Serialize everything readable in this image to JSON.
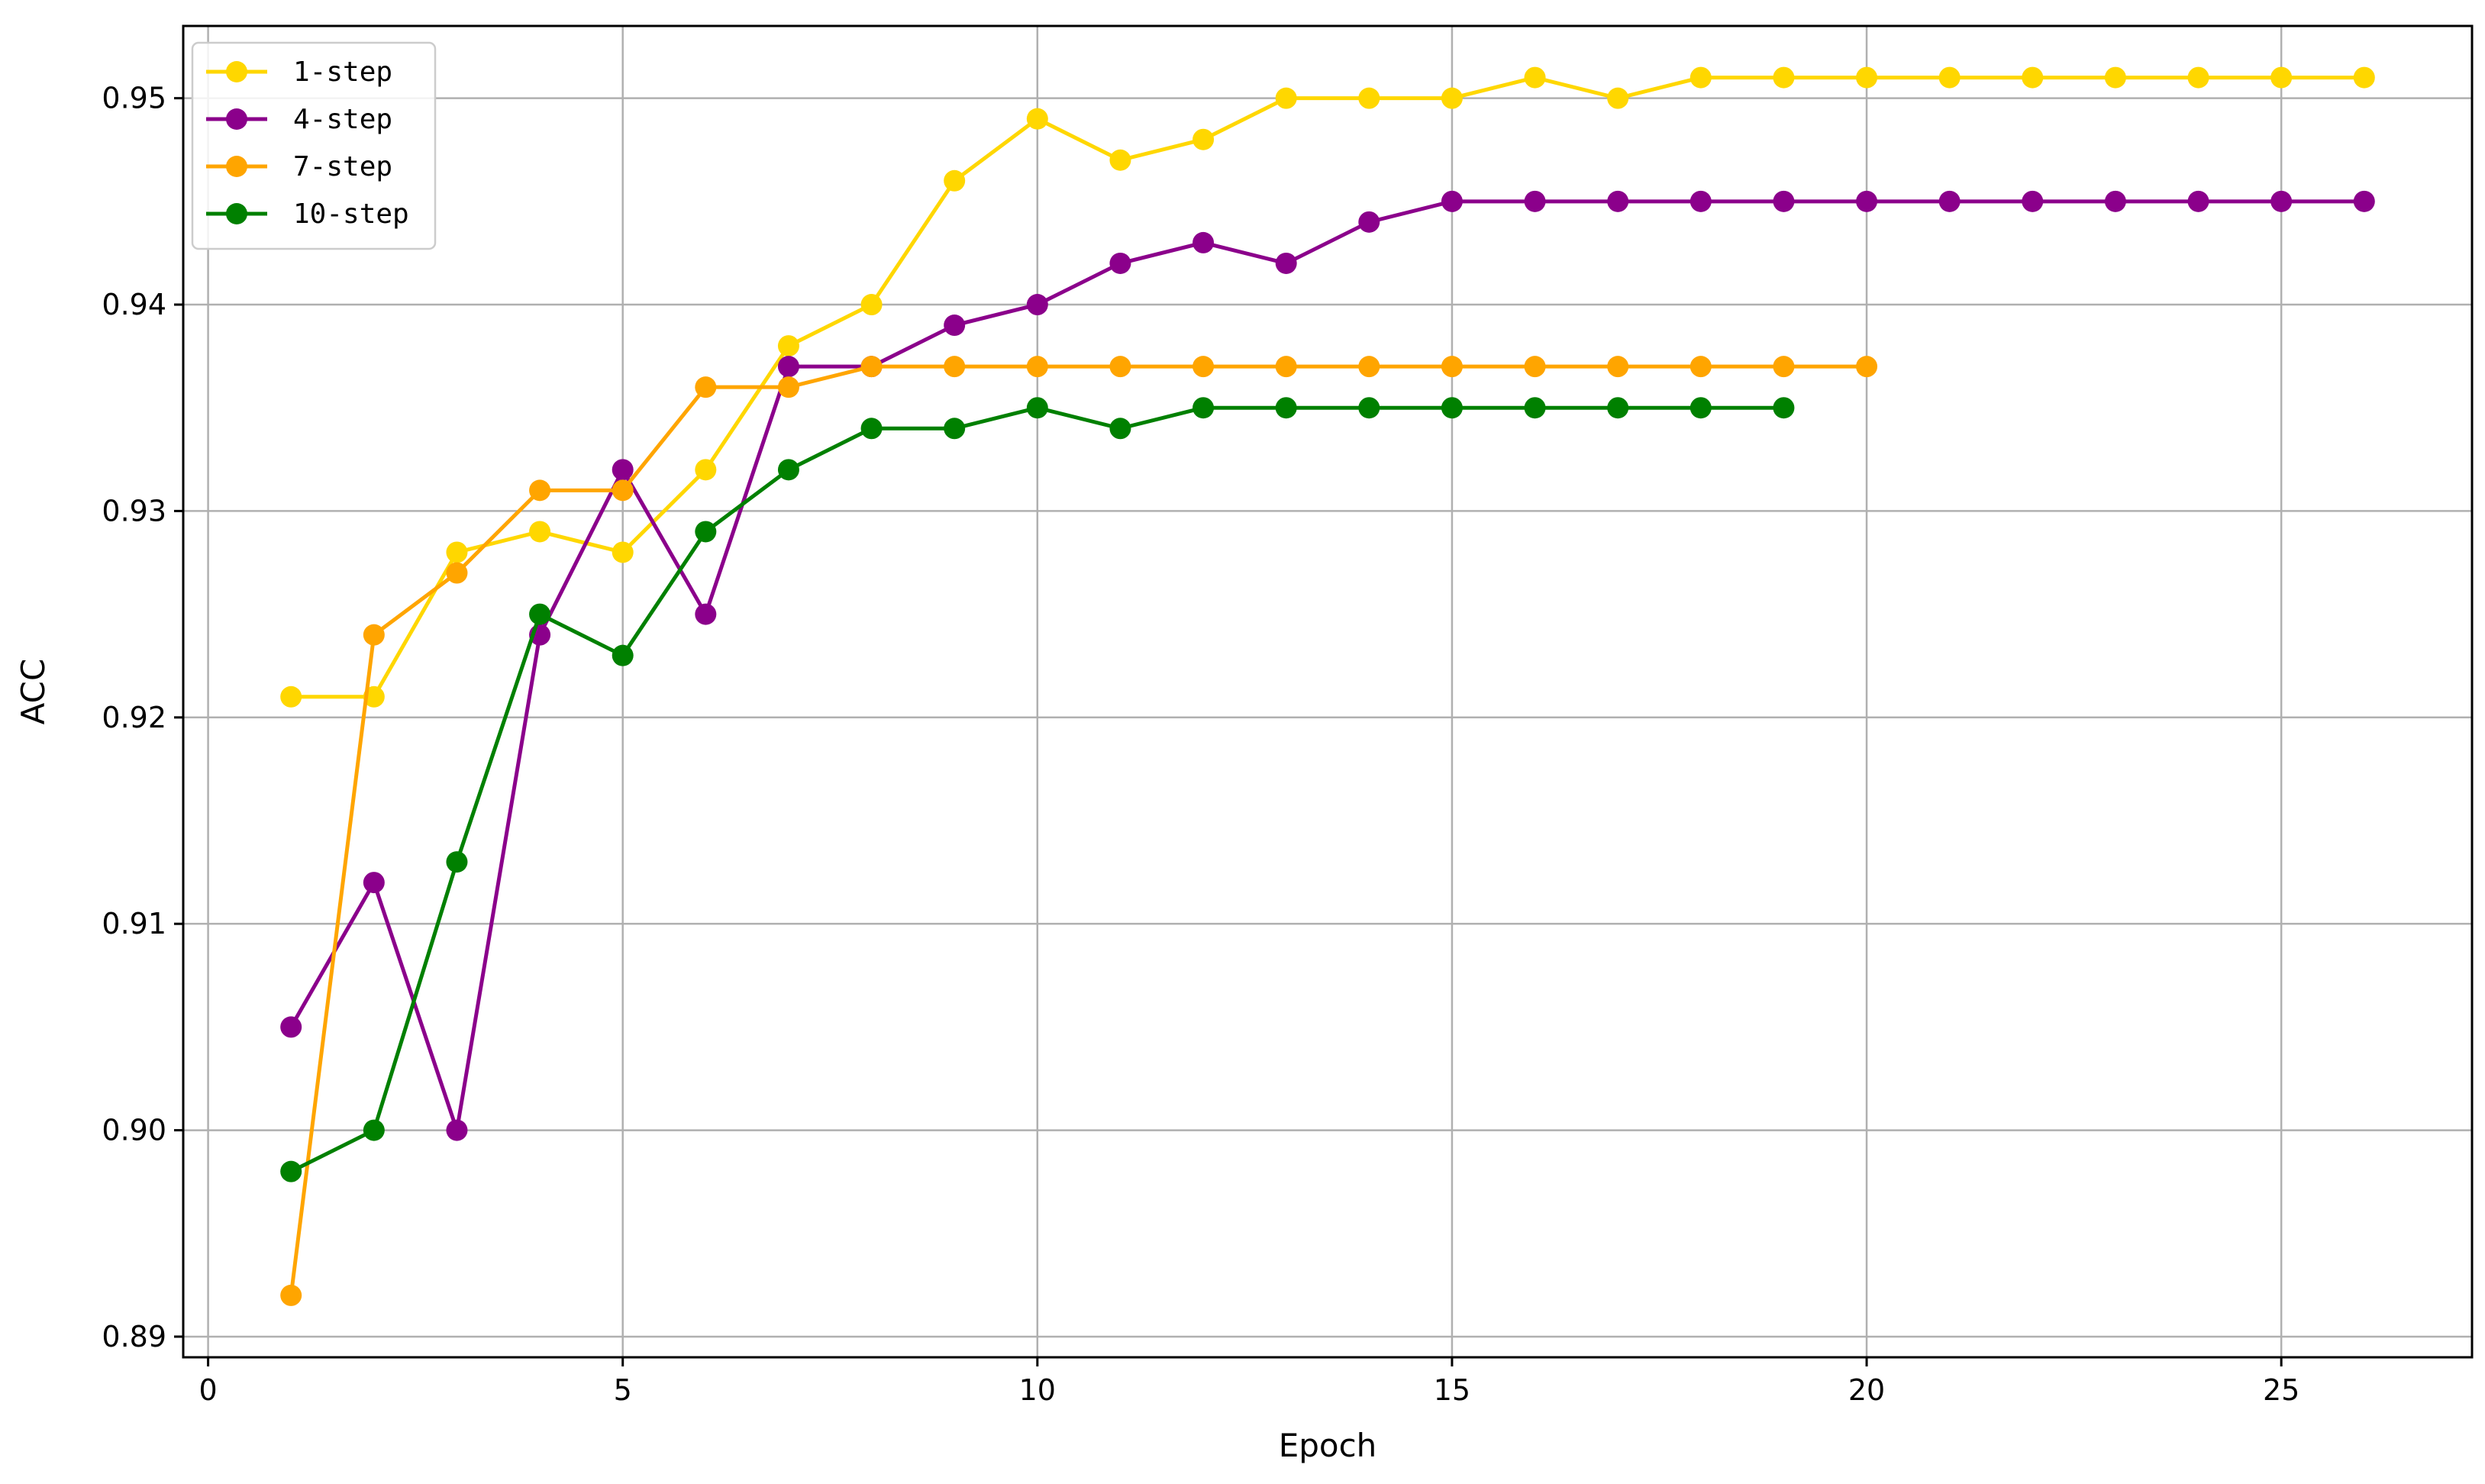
{
  "chart_data": {
    "type": "line",
    "title": "",
    "xlabel": "Epoch",
    "ylabel": "ACC",
    "xlim": [
      -0.3,
      27.3
    ],
    "ylim": [
      0.889,
      0.9535
    ],
    "xticks": [
      0,
      5,
      10,
      15,
      20,
      25
    ],
    "yticks": [
      0.89,
      0.9,
      0.91,
      0.92,
      0.93,
      0.94,
      0.95
    ],
    "ytick_labels": [
      "0.89",
      "0.90",
      "0.91",
      "0.92",
      "0.93",
      "0.94",
      "0.95"
    ],
    "grid": true,
    "legend_position": "top-left",
    "series": [
      {
        "name": "1-step",
        "color": "#FFD700",
        "x": [
          1,
          2,
          3,
          4,
          5,
          6,
          7,
          8,
          9,
          10,
          11,
          12,
          13,
          14,
          15,
          16,
          17,
          18,
          19,
          20,
          21,
          22,
          23,
          24,
          25,
          26
        ],
        "values": [
          0.921,
          0.921,
          0.928,
          0.929,
          0.928,
          0.932,
          0.938,
          0.94,
          0.946,
          0.949,
          0.947,
          0.948,
          0.95,
          0.95,
          0.95,
          0.951,
          0.95,
          0.951,
          0.951,
          0.951,
          0.951,
          0.951,
          0.951,
          0.951,
          0.951,
          0.951
        ]
      },
      {
        "name": "4-step",
        "color": "#8B008B",
        "x": [
          1,
          2,
          3,
          4,
          5,
          6,
          7,
          8,
          9,
          10,
          11,
          12,
          13,
          14,
          15,
          16,
          17,
          18,
          19,
          20,
          21,
          22,
          23,
          24,
          25,
          26
        ],
        "values": [
          0.905,
          0.912,
          0.9,
          0.924,
          0.932,
          0.925,
          0.937,
          0.937,
          0.939,
          0.94,
          0.942,
          0.943,
          0.942,
          0.944,
          0.945,
          0.945,
          0.945,
          0.945,
          0.945,
          0.945,
          0.945,
          0.945,
          0.945,
          0.945,
          0.945,
          0.945
        ]
      },
      {
        "name": "7-step",
        "color": "#FFA500",
        "x": [
          1,
          2,
          3,
          4,
          5,
          6,
          7,
          8,
          9,
          10,
          11,
          12,
          13,
          14,
          15,
          16,
          17,
          18,
          19,
          20
        ],
        "values": [
          0.892,
          0.924,
          0.927,
          0.931,
          0.931,
          0.936,
          0.936,
          0.937,
          0.937,
          0.937,
          0.937,
          0.937,
          0.937,
          0.937,
          0.937,
          0.937,
          0.937,
          0.937,
          0.937,
          0.937
        ]
      },
      {
        "name": "10-step",
        "color": "#008000",
        "x": [
          1,
          2,
          3,
          4,
          5,
          6,
          7,
          8,
          9,
          10,
          11,
          12,
          13,
          14,
          15,
          16,
          17,
          18,
          19
        ],
        "values": [
          0.898,
          0.9,
          0.913,
          0.925,
          0.923,
          0.929,
          0.932,
          0.934,
          0.934,
          0.935,
          0.934,
          0.935,
          0.935,
          0.935,
          0.935,
          0.935,
          0.935,
          0.935,
          0.935
        ]
      }
    ]
  }
}
